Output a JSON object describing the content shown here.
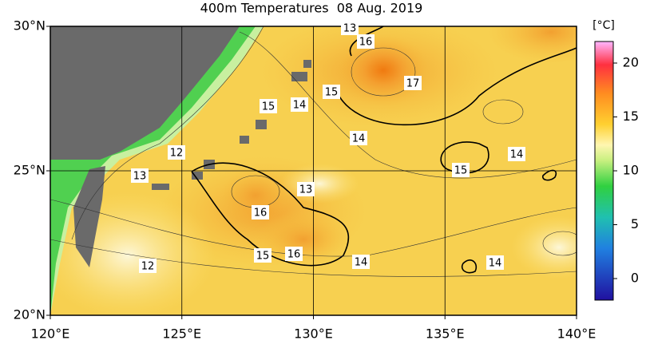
{
  "title": "400m Temperatures  08 Aug. 2019",
  "map": {
    "xlim": [
      120,
      140
    ],
    "ylim": [
      20,
      30
    ],
    "xticks": [
      {
        "value": 120,
        "label": "120°E"
      },
      {
        "value": 125,
        "label": "125°E"
      },
      {
        "value": 130,
        "label": "130°E"
      },
      {
        "value": 135,
        "label": "135°E"
      },
      {
        "value": 140,
        "label": "140°E"
      }
    ],
    "yticks": [
      {
        "value": 20,
        "label": "20°N"
      },
      {
        "value": 25,
        "label": "25°N"
      },
      {
        "value": 30,
        "label": "30°N"
      }
    ],
    "contour_labels": [
      "13",
      "16",
      "17",
      "15",
      "14",
      "15",
      "14",
      "12",
      "13",
      "15",
      "14",
      "13",
      "16",
      "15",
      "16",
      "14",
      "14",
      "12"
    ]
  },
  "colorbar": {
    "unit": "[°C]",
    "range": [
      -2,
      22
    ],
    "ticks": [
      0,
      5,
      10,
      15,
      20
    ]
  }
}
